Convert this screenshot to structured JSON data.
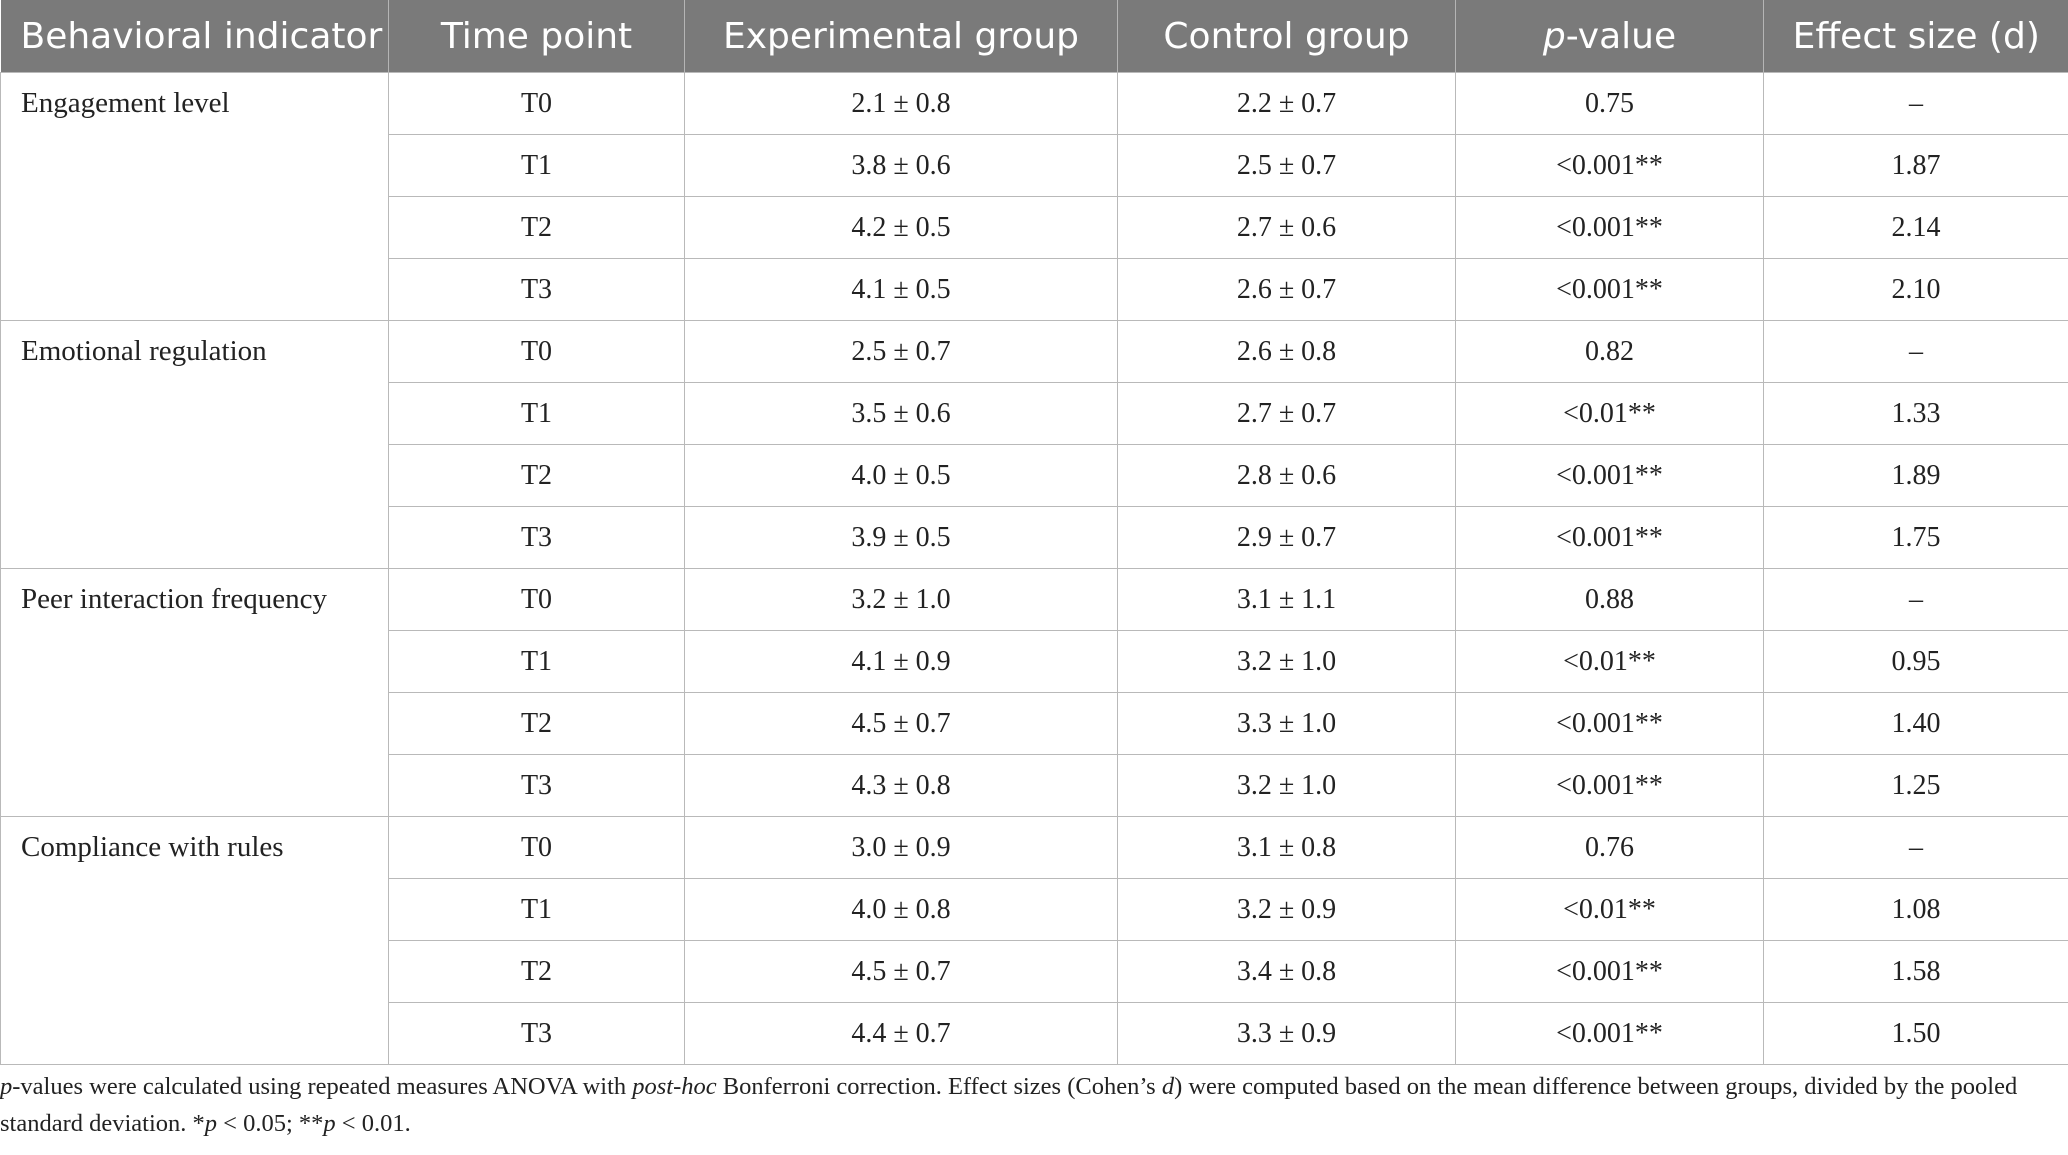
{
  "table": {
    "headers": {
      "indicator": "Behavioral indicator",
      "time": "Time point",
      "experimental": "Experimental group",
      "control": "Control group",
      "p_italic": "p",
      "p_rest": "-value",
      "effect": "Effect size (d)"
    },
    "groups": [
      {
        "indicator": "Engagement level",
        "rows": [
          {
            "time": "T0",
            "exp": "2.1 ± 0.8",
            "ctrl": "2.2 ± 0.7",
            "p": "0.75",
            "d": "–"
          },
          {
            "time": "T1",
            "exp": "3.8 ± 0.6",
            "ctrl": "2.5 ± 0.7",
            "p": "<0.001**",
            "d": "1.87"
          },
          {
            "time": "T2",
            "exp": "4.2 ± 0.5",
            "ctrl": "2.7 ± 0.6",
            "p": "<0.001**",
            "d": "2.14"
          },
          {
            "time": "T3",
            "exp": "4.1 ± 0.5",
            "ctrl": "2.6 ± 0.7",
            "p": "<0.001**",
            "d": "2.10"
          }
        ]
      },
      {
        "indicator": "Emotional regulation",
        "rows": [
          {
            "time": "T0",
            "exp": "2.5 ± 0.7",
            "ctrl": "2.6 ± 0.8",
            "p": "0.82",
            "d": "–"
          },
          {
            "time": "T1",
            "exp": "3.5 ± 0.6",
            "ctrl": "2.7 ± 0.7",
            "p": "<0.01**",
            "d": "1.33"
          },
          {
            "time": "T2",
            "exp": "4.0 ± 0.5",
            "ctrl": "2.8 ± 0.6",
            "p": "<0.001**",
            "d": "1.89"
          },
          {
            "time": "T3",
            "exp": "3.9 ± 0.5",
            "ctrl": "2.9 ± 0.7",
            "p": "<0.001**",
            "d": "1.75"
          }
        ]
      },
      {
        "indicator": "Peer interaction frequency",
        "rows": [
          {
            "time": "T0",
            "exp": "3.2 ± 1.0",
            "ctrl": "3.1 ± 1.1",
            "p": "0.88",
            "d": "–"
          },
          {
            "time": "T1",
            "exp": "4.1 ± 0.9",
            "ctrl": "3.2 ± 1.0",
            "p": "<0.01**",
            "d": "0.95"
          },
          {
            "time": "T2",
            "exp": "4.5 ± 0.7",
            "ctrl": "3.3 ± 1.0",
            "p": "<0.001**",
            "d": "1.40"
          },
          {
            "time": "T3",
            "exp": "4.3 ± 0.8",
            "ctrl": "3.2 ± 1.0",
            "p": "<0.001**",
            "d": "1.25"
          }
        ]
      },
      {
        "indicator": "Compliance with rules",
        "rows": [
          {
            "time": "T0",
            "exp": "3.0 ± 0.9",
            "ctrl": "3.1 ± 0.8",
            "p": "0.76",
            "d": "–"
          },
          {
            "time": "T1",
            "exp": "4.0 ± 0.8",
            "ctrl": "3.2 ± 0.9",
            "p": "<0.01**",
            "d": "1.08"
          },
          {
            "time": "T2",
            "exp": "4.5 ± 0.7",
            "ctrl": "3.4 ± 0.8",
            "p": "<0.001**",
            "d": "1.58"
          },
          {
            "time": "T3",
            "exp": "4.4 ± 0.7",
            "ctrl": "3.3 ± 0.9",
            "p": "<0.001**",
            "d": "1.50"
          }
        ]
      }
    ]
  },
  "footnote": {
    "p1_italic": "p",
    "p1_text": "-values were calculated using repeated measures ANOVA with ",
    "p2_italic": "post-hoc",
    "p2_text": " Bonferroni correction. Effect sizes (Cohen’s ",
    "p3_italic": "d",
    "p3_text": ") were computed based on the mean difference between groups, divided by the pooled standard deviation. *",
    "p4_italic": "p",
    "p4_text": " < 0.05; **",
    "p5_italic": "p",
    "p5_text": " < 0.01."
  }
}
